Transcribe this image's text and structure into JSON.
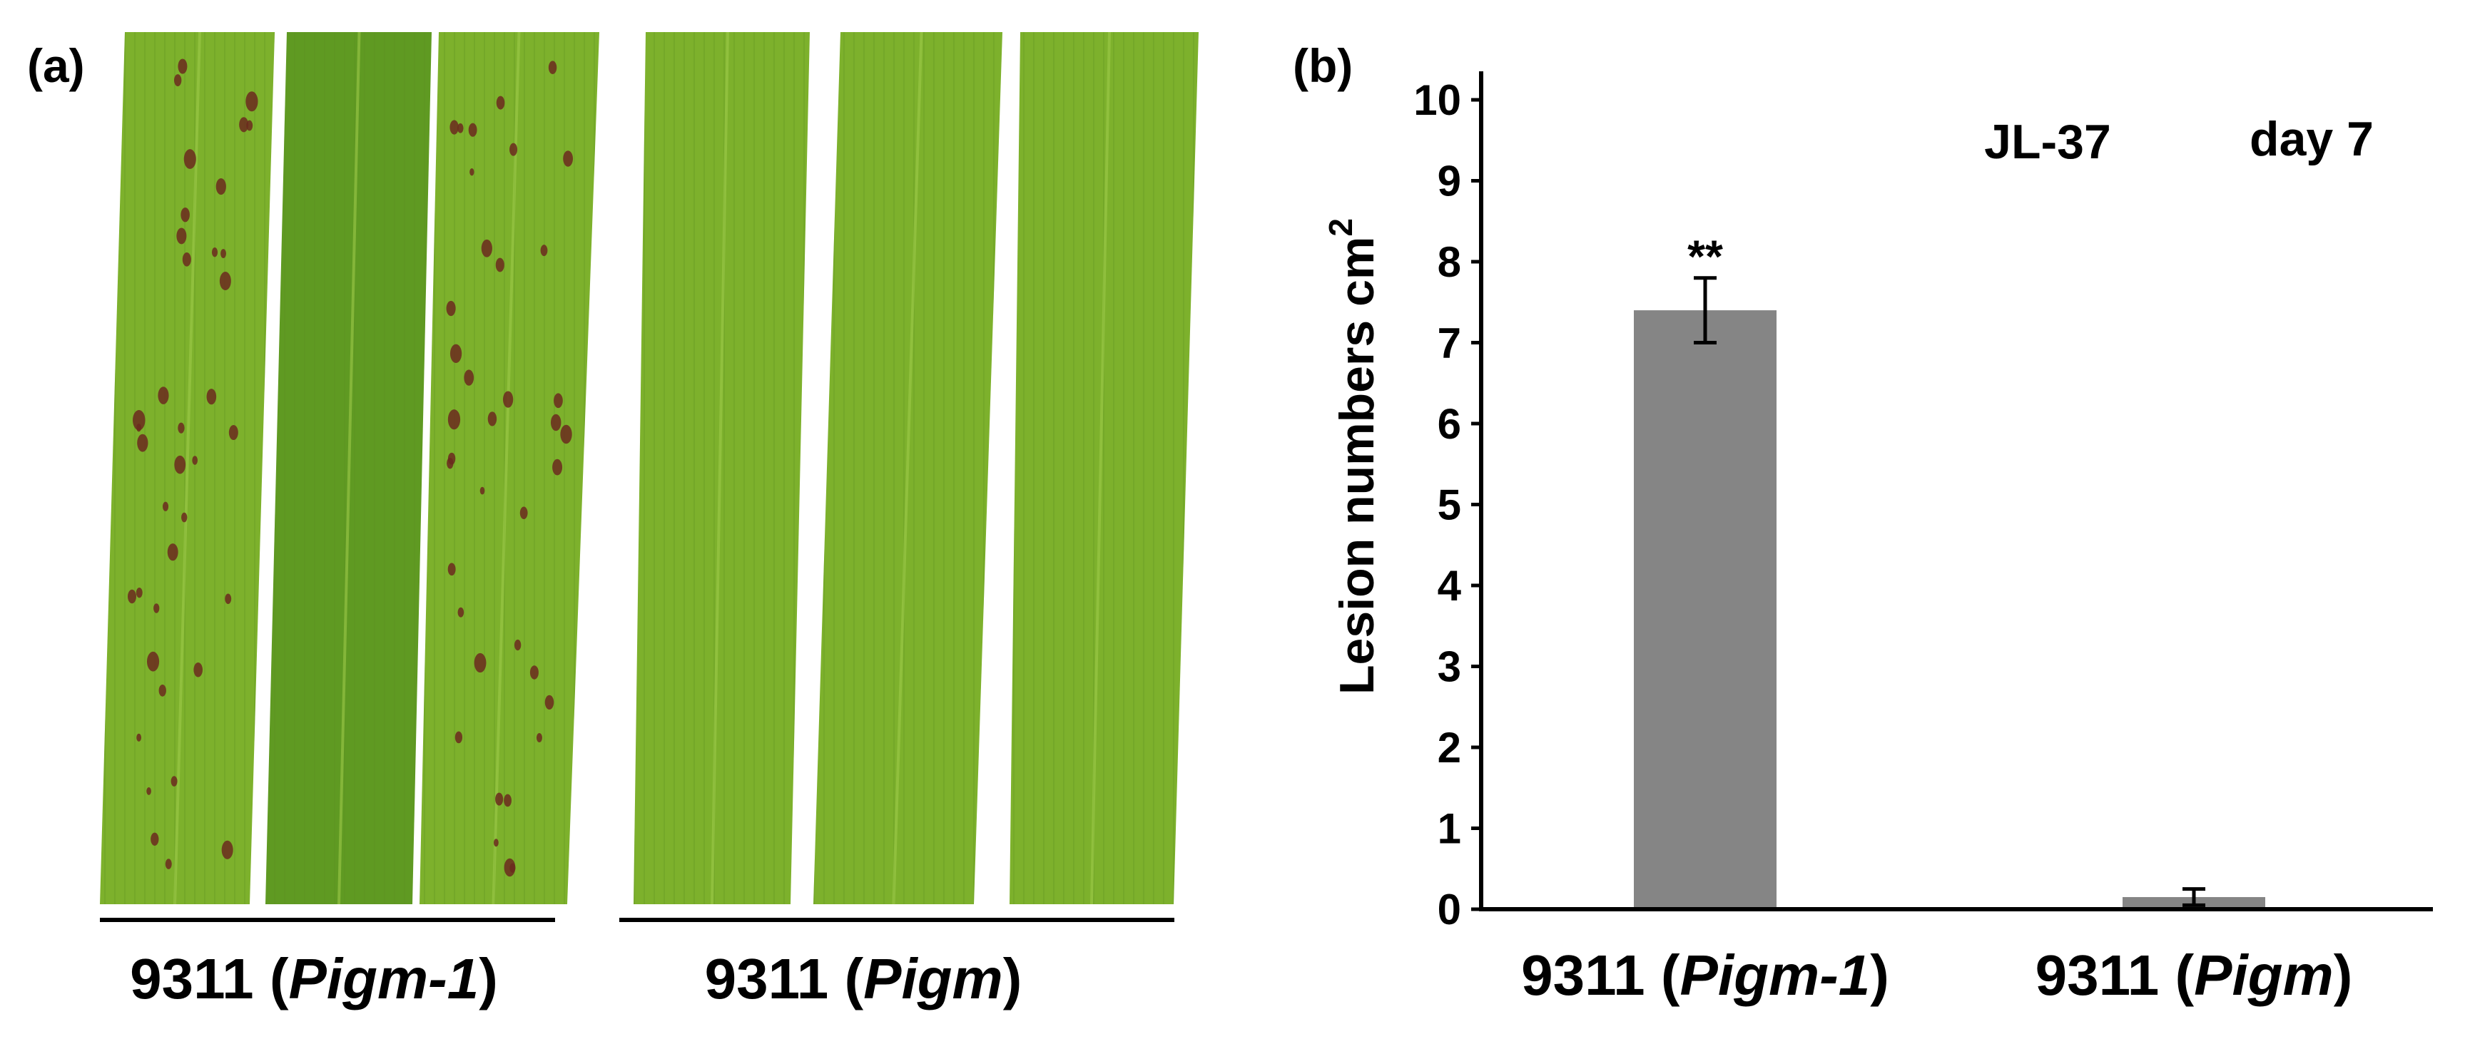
{
  "panel_a": {
    "label": "(a)",
    "leaf_groups": [
      {
        "label_prefix": "9311 (",
        "label_gene": "Pigm-1",
        "label_suffix": ")",
        "leaves": 3,
        "lesions": "many"
      },
      {
        "label_prefix": "9311 (",
        "label_gene": "Pigm",
        "label_suffix": ")",
        "leaves": 3,
        "lesions": "none"
      }
    ],
    "colors": {
      "leaf": "#7db12c",
      "leaf_dark": "#5e9422",
      "lesion": "#6b2a1e",
      "divider": "#000000"
    }
  },
  "panel_b": {
    "label": "(b)",
    "annotations": {
      "strain": "JL-37",
      "time": "day 7",
      "significance": "**"
    },
    "ylabel_main": "Lesion numbers cm",
    "ylabel_sup": "2",
    "colors": {
      "bar": "#858585",
      "axis": "#000000"
    }
  },
  "chart_data": {
    "type": "bar",
    "title": "",
    "categories": [
      {
        "prefix": "9311 (",
        "gene": "Pigm-1",
        "suffix": ")"
      },
      {
        "prefix": "9311 (",
        "gene": "Pigm",
        "suffix": ")"
      }
    ],
    "values": [
      7.4,
      0.15
    ],
    "errors": [
      0.4,
      0.1
    ],
    "ylabel": "Lesion numbers cm2",
    "ylim": [
      0,
      10
    ],
    "yticks": [
      0,
      1,
      2,
      3,
      4,
      5,
      6,
      7,
      8,
      9,
      10
    ],
    "significance": [
      "**",
      ""
    ],
    "grid": false,
    "legend": "none"
  }
}
